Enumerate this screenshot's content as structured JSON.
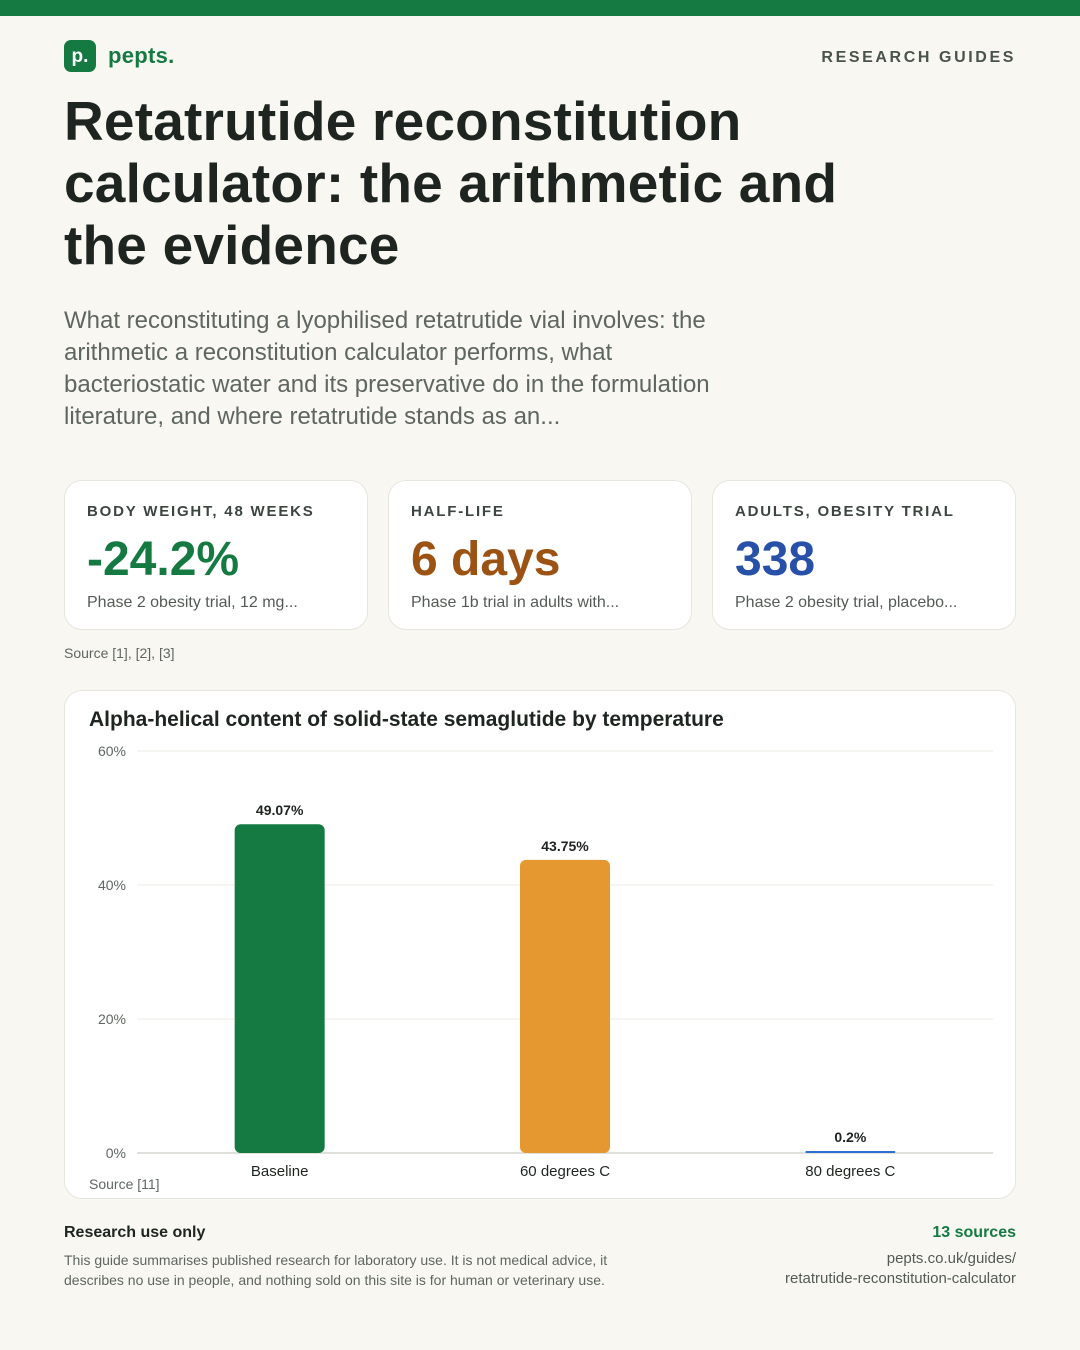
{
  "brand": {
    "mark": "p.",
    "name": "pepts."
  },
  "section_tag": "RESEARCH GUIDES",
  "title": "Retatrutide reconstitution calculator: the arithmetic and the evidence",
  "lede": "What reconstituting a lyophilised retatrutide vial involves: the arithmetic a reconstitution calculator performs, what bacteriostatic water and its preservative do in the formulation literature, and where retatrutide stands as an...",
  "stats": [
    {
      "label": "BODY WEIGHT, 48 WEEKS",
      "value": "-24.2%",
      "note": "Phase 2 obesity trial, 12 mg...",
      "color": "#157a42"
    },
    {
      "label": "HALF-LIFE",
      "value": "6 days",
      "note": "Phase 1b trial in adults with...",
      "color": "#9b5212"
    },
    {
      "label": "ADULTS, OBESITY TRIAL",
      "value": "338",
      "note": "Phase 2 obesity trial, placebo...",
      "color": "#2750a8"
    }
  ],
  "stats_source": "Source [1], [2], [3]",
  "chart_data": {
    "type": "bar",
    "title": "Alpha-helical content of solid-state semaglutide by temperature",
    "categories": [
      "Baseline",
      "60 degrees C",
      "80 degrees C"
    ],
    "values": [
      49.07,
      43.75,
      0.2
    ],
    "value_labels": [
      "49.07%",
      "43.75%",
      "0.2%"
    ],
    "colors": [
      "#157a42",
      "#e69830",
      "#2f6fd1"
    ],
    "ylim": [
      0,
      60
    ],
    "yticks": [
      0,
      20,
      40,
      60
    ],
    "ytick_labels": [
      "0%",
      "20%",
      "40%",
      "60%"
    ],
    "grid": true,
    "source": "Source [11]"
  },
  "footer": {
    "heading": "Research use only",
    "text": "This guide summarises published research for laboratory use. It is not medical advice, it describes no use in people, and nothing sold on this site is for human or veterinary use.",
    "sources_count": "13 sources",
    "url_line1": "pepts.co.uk/guides/",
    "url_line2": "retatrutide-reconstitution-calculator"
  }
}
